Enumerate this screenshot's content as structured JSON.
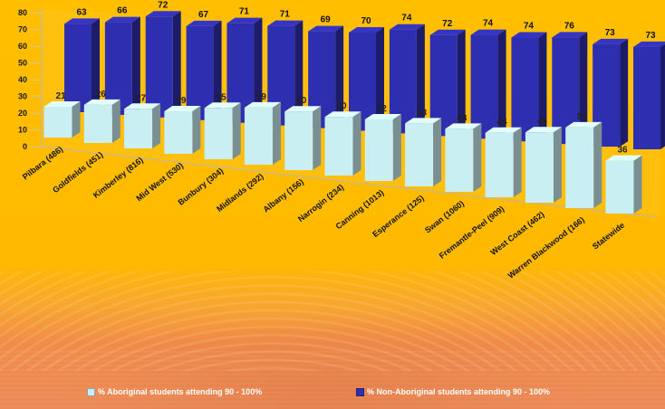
{
  "chart_data": {
    "type": "bar",
    "categories": [
      "Pilbara (486)",
      "Goldfields (451)",
      "Kimberley (816)",
      "Mid West (530)",
      "Bunbury (304)",
      "Midlands (292)",
      "Albany (156)",
      "Narrogin (234)",
      "Canning (1013)",
      "Esperance (125)",
      "Swan (1060)",
      "Fremantle-Peel (909)",
      "West Coast (462)",
      "Warren Blackwood (166)",
      "Statewide"
    ],
    "series": [
      {
        "name": "% Aboriginal students attending 90 - 100%",
        "color": "#c9eff2",
        "values": [
          21,
          26,
          27,
          29,
          35,
          39,
          40,
          40,
          42,
          43,
          43,
          44,
          48,
          55,
          36
        ]
      },
      {
        "name": "% Non-Aboriginal students attending 90 - 100%",
        "color": "#2e2fb0",
        "values": [
          63,
          66,
          72,
          67,
          71,
          71,
          69,
          70,
          74,
          72,
          74,
          74,
          76,
          73,
          73
        ]
      }
    ],
    "y_ticks": [
      "0",
      "10",
      "20",
      "30",
      "40",
      "50",
      "60",
      "70",
      "80"
    ],
    "ylim": [
      0,
      80
    ],
    "legend_position": "bottom",
    "grid": false
  }
}
